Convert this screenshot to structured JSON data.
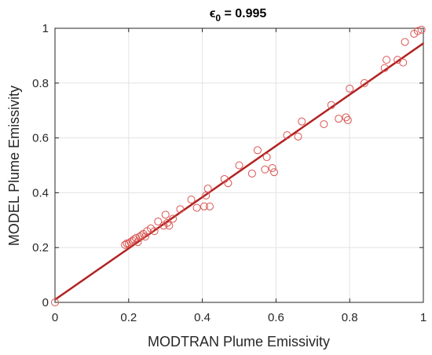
{
  "chart_data": {
    "type": "scatter",
    "title_symbol": "ϵ",
    "title_subscript": "0",
    "title_rest": " = 0.995",
    "xlabel": "MODTRAN Plume Emissivity",
    "ylabel": "MODEL Plume Emissivity",
    "xlim": [
      0,
      1
    ],
    "ylim": [
      0,
      1
    ],
    "xticks": [
      0,
      0.2,
      0.4,
      0.6,
      0.8,
      1
    ],
    "xtick_labels": [
      "0",
      "0.2",
      "0.4",
      "0.6",
      "0.8",
      "1"
    ],
    "yticks": [
      0,
      0.2,
      0.4,
      0.6,
      0.8,
      1
    ],
    "ytick_labels": [
      "0",
      "0.2",
      "0.4",
      "0.6",
      "0.8",
      "1"
    ],
    "grid": true,
    "marker_color": "#d9534f",
    "line_color": "#b22222",
    "fit_line": {
      "x": [
        0,
        1
      ],
      "y": [
        0.01,
        0.945
      ]
    },
    "series": [
      {
        "marker": "circle",
        "x": [
          0.0,
          0.19,
          0.195,
          0.2,
          0.205,
          0.21,
          0.215,
          0.22,
          0.225,
          0.23,
          0.235,
          0.24,
          0.245,
          0.25,
          0.26,
          0.27,
          0.28,
          0.295,
          0.3,
          0.305,
          0.31,
          0.32,
          0.34,
          0.37,
          0.385,
          0.405,
          0.41,
          0.415,
          0.42,
          0.46,
          0.47,
          0.5,
          0.535,
          0.55,
          0.57,
          0.575,
          0.59,
          0.595,
          0.63,
          0.66,
          0.67,
          0.73,
          0.75,
          0.77,
          0.79,
          0.795,
          0.8,
          0.84,
          0.895,
          0.9,
          0.93,
          0.945,
          0.95,
          0.975,
          0.985,
          0.995
        ],
        "y": [
          0.0,
          0.21,
          0.215,
          0.215,
          0.22,
          0.225,
          0.23,
          0.235,
          0.22,
          0.24,
          0.245,
          0.25,
          0.24,
          0.26,
          0.27,
          0.26,
          0.295,
          0.28,
          0.32,
          0.29,
          0.28,
          0.305,
          0.34,
          0.375,
          0.345,
          0.35,
          0.39,
          0.415,
          0.35,
          0.45,
          0.435,
          0.5,
          0.47,
          0.555,
          0.485,
          0.53,
          0.49,
          0.475,
          0.61,
          0.605,
          0.66,
          0.65,
          0.72,
          0.67,
          0.675,
          0.665,
          0.78,
          0.8,
          0.855,
          0.885,
          0.885,
          0.875,
          0.95,
          0.98,
          0.99,
          0.995
        ]
      }
    ]
  }
}
